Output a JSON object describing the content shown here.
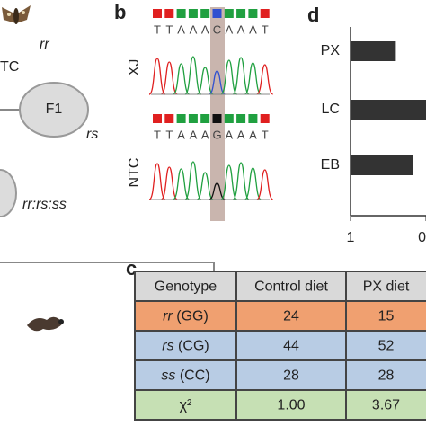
{
  "panel_a": {
    "parent": "TC",
    "parent_genotype": "rr",
    "f1": "F1",
    "f1_genotype": "rs",
    "ratio": "rr:rs:ss"
  },
  "panel_b": {
    "label": "b",
    "tracks": [
      {
        "name": "XJ",
        "sequence": [
          "T",
          "T",
          "A",
          "A",
          "A",
          "C",
          "A",
          "A",
          "A",
          "T"
        ]
      },
      {
        "name": "NTC",
        "sequence": [
          "T",
          "T",
          "A",
          "A",
          "A",
          "G",
          "A",
          "A",
          "A",
          "T"
        ]
      }
    ]
  },
  "panel_c": {
    "label": "c",
    "table": {
      "header": [
        "Genotype",
        "Control diet",
        "PX diet"
      ],
      "rows": [
        [
          {
            "allele": "rr",
            "base": " (GG)"
          },
          "24",
          "15"
        ],
        [
          {
            "allele": "rs",
            "base": " (CG)"
          },
          "44",
          "52"
        ],
        [
          {
            "allele": "ss",
            "base": " (CC)"
          },
          "28",
          "28"
        ],
        [
          {
            "allele": "χ²",
            "base": ""
          },
          "1.00",
          "3.67"
        ]
      ]
    }
  },
  "panel_d": {
    "label": "d",
    "categories": [
      "PX",
      "LC",
      "EB"
    ],
    "values": [
      0.4,
      0,
      0.17
    ],
    "color": "#333333",
    "xlim": [
      1,
      0
    ],
    "xticks": [
      1,
      0
    ]
  }
}
